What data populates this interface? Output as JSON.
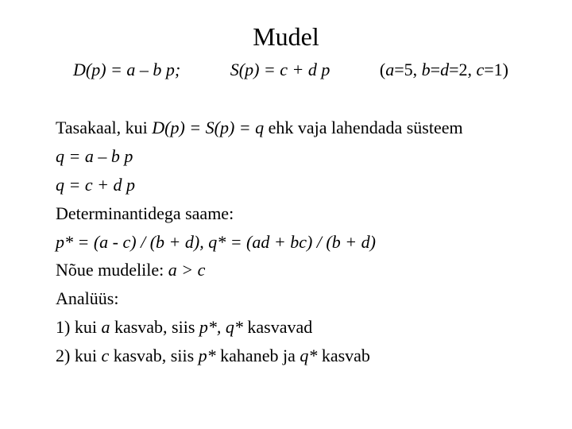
{
  "title": "Mudel",
  "formula_d": "D(p) = a – b p;",
  "formula_s": "S(p) = c + d p",
  "params_open": "(",
  "params_a": "a",
  "params_mid1": "=5, ",
  "params_b": "b",
  "params_eq": "=",
  "params_d": "d",
  "params_mid2": "=2, ",
  "params_c": "c",
  "params_close": "=1)",
  "line_tasakaal_pre": "Tasakaal,  kui   ",
  "line_tasakaal_eq": "D(p) = S(p) = q",
  "line_tasakaal_post": "    ehk vaja lahendada süsteem",
  "line_q1": "q = a – b p",
  "line_q2": "q = c + d p",
  "line_det": "Determinantidega saame:",
  "line_pq": "p* = (a - c) / (b + d),  q* = (ad + bc) / (b + d)",
  "line_noue_pre": "Nõue mudelile: ",
  "line_noue_cond": "a > c",
  "line_anal": "Analüüs:",
  "line_1_num": "1)     kui  ",
  "line_1_a": "a",
  "line_1_mid": "  kasvab, siis  ",
  "line_1_pq": "p*,  q*",
  "line_1_end": "  kasvavad",
  "line_2_num": "2)     kui  ",
  "line_2_c": "c",
  "line_2_mid": "  kasvab, siis  ",
  "line_2_p": "p*",
  "line_2_mid2": "  kahaneb ja  ",
  "line_2_q": "q*",
  "line_2_end": "  kasvab"
}
